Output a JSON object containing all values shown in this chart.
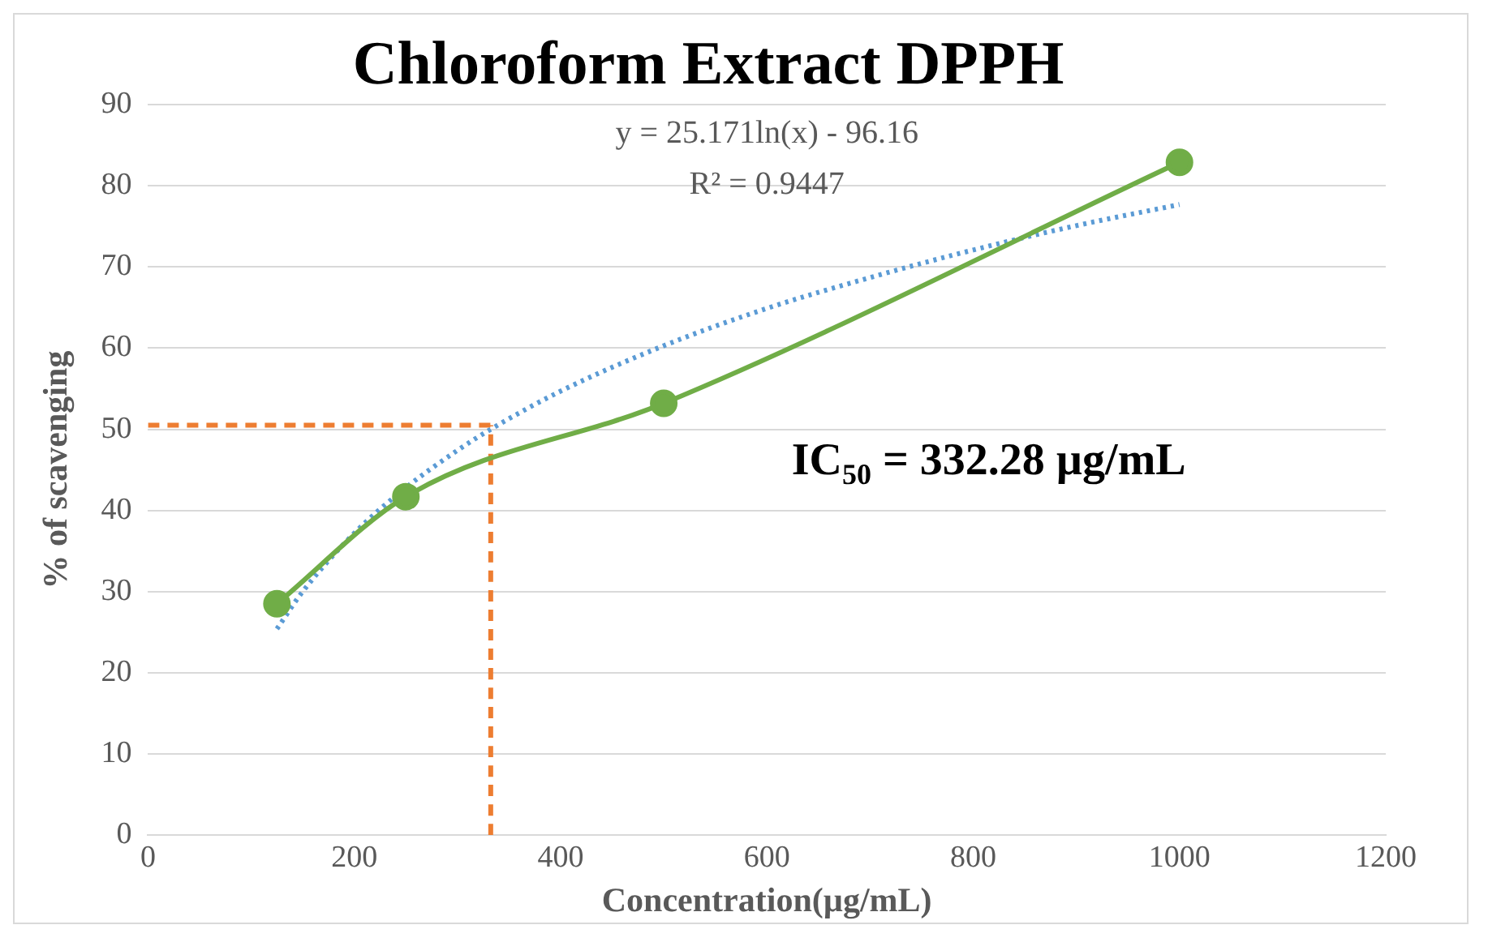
{
  "chart_data": {
    "type": "line",
    "title": "Chloroform Extract DPPH",
    "xlabel": "Concentration(µg/mL)",
    "ylabel": "% of scavenging",
    "series": [
      {
        "x": [
          125,
          250,
          500,
          1000
        ],
        "values": [
          28.5,
          41.7,
          53.2,
          82.9
        ],
        "color": "#70ad47",
        "marker": "circle",
        "line_style": "solid"
      },
      {
        "x": [
          125,
          150,
          200,
          250,
          300,
          332.28,
          400,
          500,
          600,
          700,
          800,
          900,
          1000
        ],
        "values": [
          25.4,
          30,
          37.2,
          42.8,
          47.4,
          50,
          54.7,
          60.3,
          64.9,
          68.7,
          72.1,
          75.1,
          77.7
        ],
        "color": "#5b9bd5",
        "marker": "none",
        "line_style": "dotted"
      },
      {
        "x": [
          0,
          332.28
        ],
        "values": [
          50.5,
          50.5
        ],
        "color": "#ed7d31",
        "marker": "none",
        "line_style": "dashed"
      },
      {
        "x": [
          332.28,
          332.28
        ],
        "values": [
          0,
          50.5
        ],
        "color": "#ed7d31",
        "marker": "none",
        "line_style": "dashed"
      }
    ],
    "xlim": [
      0,
      1200
    ],
    "xticks": [
      0,
      200,
      400,
      600,
      800,
      1000,
      1200
    ],
    "ylim": [
      0,
      90
    ],
    "yticks": [
      0,
      10,
      20,
      30,
      40,
      50,
      60,
      70,
      80,
      90
    ],
    "grid": "y",
    "legend": false,
    "annotations": [
      "y = 25.171ln(x) - 96.16",
      "R² = 0.9447",
      "IC$_{50}$ = 332.28 µg/mL"
    ]
  }
}
